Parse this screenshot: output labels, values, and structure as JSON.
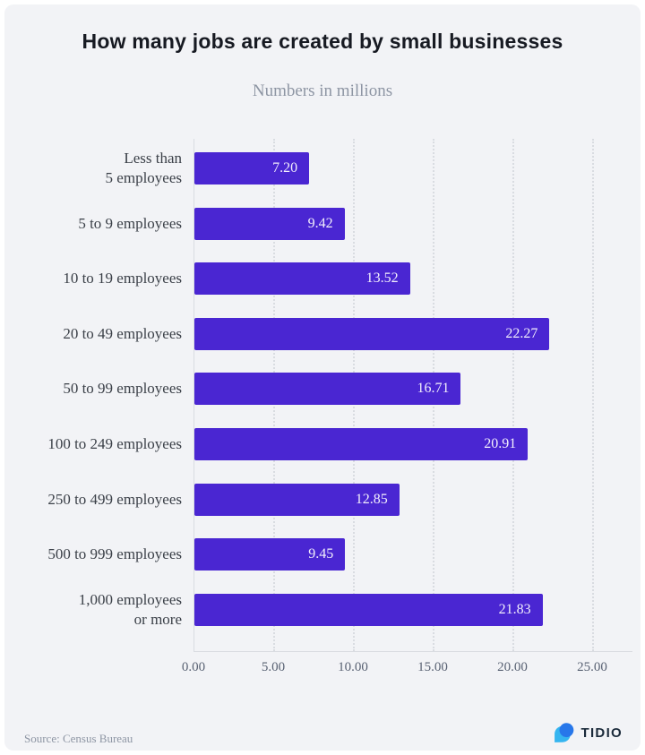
{
  "page": {
    "title": "How many jobs are created by small businesses",
    "subtitle": "Numbers in millions",
    "source": "Source: Census Bureau",
    "brand": "TIDIO"
  },
  "colors": {
    "outer_background": "#ffffff",
    "card_background": "#f2f3f6",
    "bar": "#4a26d2",
    "grid": "#d9dce1",
    "title_text": "#171a22",
    "subtitle_text": "#8d95a3",
    "label_text": "#3b4048",
    "value_text": "#f2effc",
    "tick_text": "#596273",
    "source_text": "#8e96a4",
    "logo_blue": "#2777ea",
    "logo_cyan": "#35b5f0",
    "logo_text": "#1b2a3a"
  },
  "chart_data": {
    "type": "bar",
    "orientation": "horizontal",
    "title": "How many jobs are created by small businesses",
    "subtitle": "Numbers in millions",
    "categories": [
      "Less than\n5 employees",
      "5 to 9 employees",
      "10 to 19 employees",
      "20 to 49 employees",
      "50 to 99 employees",
      "100 to 249 employees",
      "250 to 499 employees",
      "500 to 999 employees",
      "1,000 employees\nor more"
    ],
    "values": [
      7.2,
      9.42,
      13.52,
      22.27,
      16.71,
      20.91,
      12.85,
      9.45,
      21.83
    ],
    "value_labels": [
      "7.20",
      "9.42",
      "13.52",
      "22.27",
      "16.71",
      "20.91",
      "12.85",
      "9.45",
      "21.83"
    ],
    "x_ticks": [
      {
        "label": "0.00",
        "value": 0
      },
      {
        "label": "5.00",
        "value": 5
      },
      {
        "label": "10.00",
        "value": 10
      },
      {
        "label": "15.00",
        "value": 15
      },
      {
        "label": "20.00",
        "value": 20
      },
      {
        "label": "25.00",
        "value": 25
      }
    ],
    "xlim": [
      0,
      25
    ],
    "grid": "dotted-vertical-gridlines",
    "legend": "none",
    "value_labels_position": "inside-end",
    "source": "Source: Census Bureau"
  }
}
